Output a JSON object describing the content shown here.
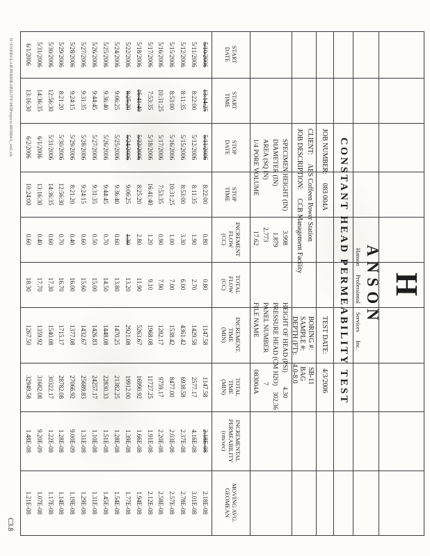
{
  "page": {
    "page_number": "C3.8",
    "footer_path": "H:\\USERS\\LAB\\PERMEABILITY\\083Projects\\083004A_soil.xls"
  },
  "logo": {
    "mark": "H",
    "name": "ANSON",
    "tagline": "Hanson Professional Services Inc."
  },
  "title": "CONSTANT HEAD PERMEABILITY TEST",
  "info": {
    "job_number_label": "JOB NUMBER:",
    "job_number": "083 004A",
    "client_label": "CLIENT:",
    "client": "AES Coffeen Power Station",
    "job_description_label": "JOB DESCRIPTION:",
    "job_description": "CCB Management Facility",
    "test_date_label": "TEST DATE:",
    "test_date": "4/3/2006",
    "boring_label": "BORING #:",
    "boring": "SB-11",
    "sample_label": "SAMPLE #:",
    "sample": "BAG",
    "depth_label": "DEPTH (FT):",
    "depth": "4.0-8.0",
    "specimen_height_label": "SPECIMEN HEIGHT (IN)",
    "specimen_height": "3.998",
    "diameter_label": "DIAMETER (IN)",
    "diameter": "1.879",
    "area_label": "AREA (SQ IN)",
    "area": "2.773",
    "pore_volume_label": "1/4 PORE VOLUME",
    "pore_volume": "17.62",
    "height_of_head_label": "HEIGHT OF HEAD (PSI)",
    "height_of_head": "4.30",
    "pressure_head_label": "PRESSURE HEAD (CM H2O)",
    "pressure_head": "302.36",
    "panel_number_label": "PANEL NUMBER",
    "panel_number": "7",
    "file_name_label": "FILE NAME",
    "file_name": "083004A"
  },
  "table": {
    "headers": [
      "START\nDATE",
      "START\nTIME",
      "STOP\nDATE",
      "STOP\nTIME",
      "INCREMENT\nFLOW\n(CC)",
      "TOTAL\nFLOW\n(CC)",
      "INCREMENT.\nTIME\n(MIN)",
      "TOTAL\nTIME\n(MIN)",
      "INCREMENTAL\nPERMEABILITY\n(cm/sec)",
      "MOVING AVG.\nGEOMEAN"
    ],
    "rows": [
      {
        "start_date": "5/10/2006",
        "start_time": "13:14:25",
        "stop_date": "5/11/2006",
        "stop_time": "8:22:00",
        "flow": "0.80",
        "total_flow": "0.80",
        "incr_time": "1147.58",
        "total_time": "1147.58",
        "incr_perm": "2.18E-08",
        "geomean": "2.18E-08",
        "strike": [
          "start_date",
          "start_time",
          "stop_date",
          "incr_perm"
        ]
      },
      {
        "start_date": "5/11/2006",
        "start_time": "8:22:00",
        "stop_date": "5/12/2006",
        "stop_time": "8:11:35",
        "flow": "1.90",
        "total_flow": "2.70",
        "incr_time": "1429.58",
        "total_time": "2577.17",
        "incr_perm": "4.16E-08",
        "geomean": "3.01E-08",
        "strike": []
      },
      {
        "start_date": "5/12/2006",
        "start_time": "8:11:35",
        "stop_date": "5/15/2006",
        "stop_time": "8:53:00",
        "flow": "3.30",
        "total_flow": "6.00",
        "incr_time": "4361.42",
        "total_time": "6938.58",
        "incr_perm": "2.37E-08",
        "geomean": "2.78E-08",
        "strike": []
      },
      {
        "start_date": "5/15/2006",
        "start_time": "8:53:00",
        "stop_date": "5/16/2006",
        "stop_time": "10:31:25",
        "flow": "1.00",
        "total_flow": "7.00",
        "incr_time": "1538.42",
        "total_time": "8477.00",
        "incr_perm": "2.03E-08",
        "geomean": "2.57E-08",
        "strike": []
      },
      {
        "start_date": "5/16/2006",
        "start_time": "10:31:25",
        "stop_date": "5/17/2006",
        "stop_time": "7:53:35",
        "flow": "0.90",
        "total_flow": "7.90",
        "incr_time": "1282.17",
        "total_time": "9759.17",
        "incr_perm": "2.20E-08",
        "geomean": "2.58E-08",
        "strike": []
      },
      {
        "start_date": "5/17/2006",
        "start_time": "7:53:35",
        "stop_date": "5/18/2006",
        "stop_time": "16:41:40",
        "flow": "1.20",
        "total_flow": "9.10",
        "incr_time": "1968.08",
        "total_time": "11727.25",
        "incr_perm": "1.91E-08",
        "geomean": "2.12E-08",
        "strike": []
      },
      {
        "start_date": "5/18/2006",
        "start_time": "16:41:40",
        "stop_date": "5/22/2006",
        "stop_time": "8:25:20",
        "flow": "2.80",
        "total_flow": "11.90",
        "incr_time": "5263.67",
        "total_time": "16990.92",
        "incr_perm": "1.66E-08",
        "geomean": "1.94E-08",
        "strike": [
          "start_time",
          "stop_date"
        ]
      },
      {
        "start_date": "5/22/2006",
        "start_time": "8:25:20",
        "stop_date": "5/24/2006",
        "stop_time": "9:06:25",
        "flow": "1.30",
        "total_flow": "13.20",
        "incr_time": "2921.08",
        "total_time": "19912.00",
        "incr_perm": "1.39E-08",
        "geomean": "1.77E-08",
        "strike": [
          "start_time",
          "stop_date",
          "flow"
        ]
      },
      {
        "start_date": "5/24/2006",
        "start_time": "9:06:25",
        "stop_date": "5/25/2006",
        "stop_time": "9:36:40",
        "flow": "0.60",
        "total_flow": "13.80",
        "incr_time": "1470.25",
        "total_time": "21382.25",
        "incr_perm": "1.28E-08",
        "geomean": "1.54E-08",
        "strike": []
      },
      {
        "start_date": "5/25/2006",
        "start_time": "9:36:40",
        "stop_date": "5/26/2006",
        "stop_time": "9:44:45",
        "flow": "0.70",
        "total_flow": "14.50",
        "incr_time": "1448.08",
        "total_time": "22830.33",
        "incr_perm": "1.51E-08",
        "geomean": "1.45E-08",
        "strike": []
      },
      {
        "start_date": "5/26/2006",
        "start_time": "9:44:45",
        "stop_date": "5/27/2006",
        "stop_time": "9:31:35",
        "flow": "0.50",
        "total_flow": "15.00",
        "incr_time": "1426.83",
        "total_time": "24257.17",
        "incr_perm": "1.10E-08",
        "geomean": "1.31E-08",
        "strike": []
      },
      {
        "start_date": "5/27/2006",
        "start_time": "9:31:35",
        "stop_date": "5/28/2006",
        "stop_time": "9:24:15",
        "flow": "0.60",
        "total_flow": "15.60",
        "incr_time": "1432.67",
        "total_time": "25689.83",
        "incr_perm": "1.31E-08",
        "geomean": "1.29E-08",
        "strike": []
      },
      {
        "start_date": "5/28/2006",
        "start_time": "9:24:15",
        "stop_date": "5/29/2006",
        "stop_time": "8:21:20",
        "flow": "0.40",
        "total_flow": "16.00",
        "incr_time": "1377.08",
        "total_time": "27066.92",
        "incr_perm": "9.00E-09",
        "geomean": "1.19E-08",
        "strike": []
      },
      {
        "start_date": "5/29/2006",
        "start_time": "8:21:20",
        "stop_date": "5/30/2006",
        "stop_time": "12:56:30",
        "flow": "0.70",
        "total_flow": "16.70",
        "incr_time": "1715.17",
        "total_time": "28782.08",
        "incr_perm": "1.28E-08",
        "geomean": "1.14E-08",
        "strike": []
      },
      {
        "start_date": "5/30/2006",
        "start_time": "12:56:30",
        "stop_date": "5/31/2006",
        "stop_time": "14:36:35",
        "flow": "0.60",
        "total_flow": "17.30",
        "incr_time": "1540.08",
        "total_time": "30322.17",
        "incr_perm": "1.22E-08",
        "geomean": "1.17E-08",
        "strike": []
      },
      {
        "start_date": "5/31/2006",
        "start_time": "14:36:35",
        "stop_date": "6/1/2006",
        "stop_time": "13:16:30",
        "flow": "0.40",
        "total_flow": "17.70",
        "incr_time": "1359.92",
        "total_time": "31682.08",
        "incr_perm": "9.20E-09",
        "geomean": "1.07E-08",
        "strike": []
      },
      {
        "start_date": "6/1/2006",
        "start_time": "13:16:30",
        "stop_date": "6/2/2006",
        "stop_time": "10:24:00",
        "flow": "0.60",
        "total_flow": "18.30",
        "incr_time": "1267.50",
        "total_time": "32949.58",
        "incr_perm": "1.48E-08",
        "geomean": "1.21E-08",
        "strike": []
      }
    ]
  }
}
